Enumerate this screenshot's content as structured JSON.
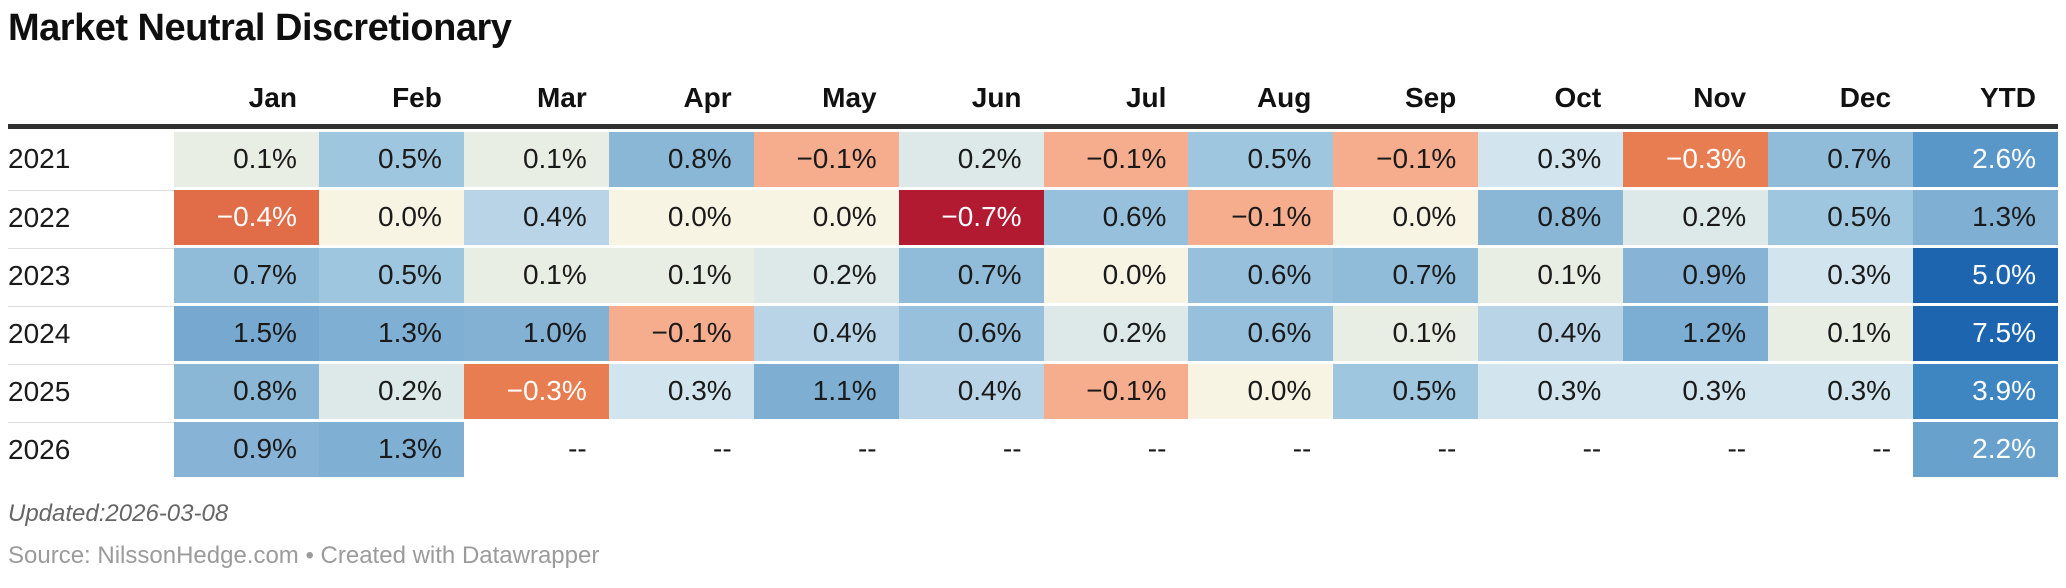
{
  "title": "Market Neutral Discretionary",
  "footer": {
    "updated": "Updated:2026-03-08",
    "source": "Source: NilssonHedge.com • Created with Datawrapper"
  },
  "chart_data": {
    "type": "heatmap",
    "title": "Market Neutral Discretionary",
    "unit": "%",
    "columns": [
      "Jan",
      "Feb",
      "Mar",
      "Apr",
      "May",
      "Jun",
      "Jul",
      "Aug",
      "Sep",
      "Oct",
      "Nov",
      "Dec",
      "YTD"
    ],
    "rows": [
      {
        "year": "2021",
        "cells": [
          "0.1%",
          "0.5%",
          "0.1%",
          "0.8%",
          "−0.1%",
          "0.2%",
          "−0.1%",
          "0.5%",
          "−0.1%",
          "0.3%",
          "−0.3%",
          "0.7%",
          "2.6%"
        ]
      },
      {
        "year": "2022",
        "cells": [
          "−0.4%",
          "0.0%",
          "0.4%",
          "0.0%",
          "0.0%",
          "−0.7%",
          "0.6%",
          "−0.1%",
          "0.0%",
          "0.8%",
          "0.2%",
          "0.5%",
          "1.3%"
        ]
      },
      {
        "year": "2023",
        "cells": [
          "0.7%",
          "0.5%",
          "0.1%",
          "0.1%",
          "0.2%",
          "0.7%",
          "0.0%",
          "0.6%",
          "0.7%",
          "0.1%",
          "0.9%",
          "0.3%",
          "5.0%"
        ]
      },
      {
        "year": "2024",
        "cells": [
          "1.5%",
          "1.3%",
          "1.0%",
          "−0.1%",
          "0.4%",
          "0.6%",
          "0.2%",
          "0.6%",
          "0.1%",
          "0.4%",
          "1.2%",
          "0.1%",
          "7.5%"
        ]
      },
      {
        "year": "2025",
        "cells": [
          "0.8%",
          "0.2%",
          "−0.3%",
          "0.3%",
          "1.1%",
          "0.4%",
          "−0.1%",
          "0.0%",
          "0.5%",
          "0.3%",
          "0.3%",
          "0.3%",
          "3.9%"
        ]
      },
      {
        "year": "2026",
        "cells": [
          "0.9%",
          "1.3%",
          "--",
          "--",
          "--",
          "--",
          "--",
          "--",
          "--",
          "--",
          "--",
          "--",
          "2.2%"
        ]
      }
    ],
    "legend": "none",
    "color_scale": "diverging red-cream-blue centered at 0"
  },
  "cell_colors": {
    "--": {
      "bg": "#ffffff",
      "fg": "#1a1a1a"
    },
    "−0.7%": {
      "bg": "#b11a31",
      "fg": "#ffffff"
    },
    "−0.4%": {
      "bg": "#e06c48",
      "fg": "#ffffff"
    },
    "−0.3%": {
      "bg": "#e97d52",
      "fg": "#ffffff"
    },
    "−0.1%": {
      "bg": "#f5ad8d",
      "fg": "#1a1a1a"
    },
    "0.0%": {
      "bg": "#f8f4e3",
      "fg": "#1a1a1a"
    },
    "0.1%": {
      "bg": "#e9eee4",
      "fg": "#1a1a1a"
    },
    "0.2%": {
      "bg": "#dde9e9",
      "fg": "#1a1a1a"
    },
    "0.3%": {
      "bg": "#d2e4ed",
      "fg": "#1a1a1a"
    },
    "0.4%": {
      "bg": "#b9d4e7",
      "fg": "#1a1a1a"
    },
    "0.5%": {
      "bg": "#9fc6df",
      "fg": "#1a1a1a"
    },
    "0.6%": {
      "bg": "#97c0dc",
      "fg": "#1a1a1a"
    },
    "0.7%": {
      "bg": "#90bbd9",
      "fg": "#1a1a1a"
    },
    "0.8%": {
      "bg": "#8bb7d7",
      "fg": "#1a1a1a"
    },
    "0.9%": {
      "bg": "#87b4d6",
      "fg": "#1a1a1a"
    },
    "1.0%": {
      "bg": "#83b1d4",
      "fg": "#1a1a1a"
    },
    "1.1%": {
      "bg": "#7eaed2",
      "fg": "#1a1a1a"
    },
    "1.2%": {
      "bg": "#7cadd2",
      "fg": "#1a1a1a"
    },
    "1.3%": {
      "bg": "#7fb0d4",
      "fg": "#1a1a1a"
    },
    "1.5%": {
      "bg": "#77a9d0",
      "fg": "#1a1a1a"
    },
    "2.2%": {
      "bg": "#68a2cc",
      "fg": "#ffffff"
    },
    "2.6%": {
      "bg": "#5997c8",
      "fg": "#ffffff"
    },
    "3.9%": {
      "bg": "#3e86c1",
      "fg": "#ffffff"
    },
    "5.0%": {
      "bg": "#1d65af",
      "fg": "#ffffff"
    },
    "7.5%": {
      "bg": "#1d65af",
      "fg": "#ffffff"
    }
  }
}
